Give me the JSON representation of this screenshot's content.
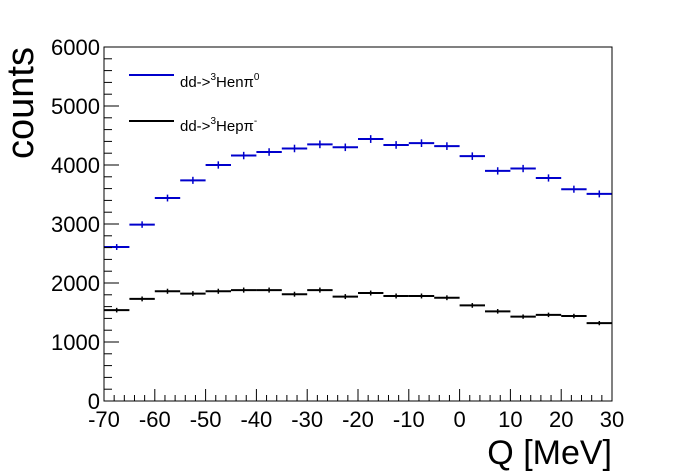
{
  "chart_data": {
    "type": "histogram",
    "xlabel": "Q [MeV]",
    "ylabel": "counts",
    "xlim": [
      -70,
      30
    ],
    "ylim": [
      0,
      6000
    ],
    "xticks": [
      "-70",
      "-60",
      "-50",
      "-40",
      "-30",
      "-20",
      "-10",
      "0",
      "10",
      "20",
      "30"
    ],
    "yticks": [
      "0",
      "1000",
      "2000",
      "3000",
      "4000",
      "5000",
      "6000"
    ],
    "bin_width": 5,
    "bin_centers": [
      -67.5,
      -62.5,
      -57.5,
      -52.5,
      -47.5,
      -42.5,
      -37.5,
      -32.5,
      -27.5,
      -22.5,
      -17.5,
      -12.5,
      -7.5,
      -2.5,
      2.5,
      7.5,
      12.5,
      17.5,
      22.5,
      27.5
    ],
    "series": [
      {
        "name": "dd->3Henpi0",
        "legend": {
          "prefix": "dd->",
          "sup1": "3",
          "mid": "Hen",
          "greek": "π",
          "sup2": "0"
        },
        "color": "#0000cc",
        "values": [
          2610,
          2990,
          3440,
          3740,
          4000,
          4160,
          4220,
          4280,
          4350,
          4300,
          4440,
          4340,
          4370,
          4320,
          4150,
          3900,
          3940,
          3780,
          3590,
          3510
        ],
        "errors": [
          50,
          55,
          58,
          60,
          62,
          63,
          64,
          64,
          65,
          64,
          66,
          65,
          65,
          65,
          64,
          62,
          62,
          61,
          60,
          59
        ]
      },
      {
        "name": "dd->3Heppi-",
        "legend": {
          "prefix": "dd->",
          "sup1": "3",
          "mid": "Hep",
          "greek": "π",
          "sup2": "-"
        },
        "color": "#000000",
        "values": [
          1540,
          1730,
          1860,
          1820,
          1860,
          1880,
          1880,
          1810,
          1880,
          1770,
          1830,
          1780,
          1780,
          1750,
          1620,
          1520,
          1430,
          1460,
          1440,
          1320
        ],
        "errors": [
          39,
          41,
          43,
          42,
          43,
          43,
          43,
          42,
          43,
          42,
          42,
          42,
          42,
          41,
          40,
          39,
          37,
          38,
          38,
          36
        ]
      }
    ]
  }
}
